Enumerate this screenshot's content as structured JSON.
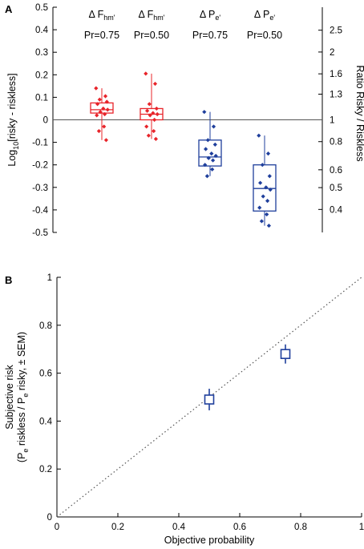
{
  "chart_data": [
    {
      "panel": "A",
      "type": "box",
      "ylabel": "Log10[risky - riskless]",
      "ylabel_parts": {
        "main": "Log",
        "sub": "10",
        "rest": "[risky - riskless]"
      },
      "y2label": "Ratio Risky / Riskless",
      "ylim": [
        -0.5,
        0.5
      ],
      "yticks": [
        -0.5,
        -0.4,
        -0.3,
        -0.2,
        -0.1,
        0,
        0.1,
        0.2,
        0.3,
        0.4,
        0.5
      ],
      "ytick_labels": [
        "-0.5",
        "-0.4",
        "-0.3",
        "-0.2",
        "-0.1",
        "0",
        "0.1",
        "0.2",
        "0.3",
        "0.4",
        "0.5"
      ],
      "y2ticks": [
        0.4,
        0.5,
        0.6,
        0.8,
        1,
        1.3,
        1.6,
        2,
        2.5
      ],
      "y2tick_labels": [
        "0.4",
        "0.5",
        "0.6",
        "0.8",
        "1",
        "1.3",
        "1.6",
        "2",
        "2.5"
      ],
      "reference_line": 0,
      "groups": [
        {
          "label_delta": "Δ",
          "label_var": "F",
          "label_sub": "hm'",
          "label_pr": "Pr=0.75",
          "color": "#e8242a",
          "min": -0.09,
          "q1": 0.03,
          "median": 0.045,
          "q3": 0.075,
          "max": 0.14,
          "points": [
            0.14,
            0.105,
            0.09,
            0.08,
            0.07,
            0.05,
            0.045,
            0.035,
            0.025,
            0.02,
            -0.03,
            -0.05,
            -0.09
          ]
        },
        {
          "label_delta": "Δ",
          "label_var": "F",
          "label_sub": "hm'",
          "label_pr": "Pr=0.50",
          "color": "#e8242a",
          "min": -0.085,
          "q1": 0.0,
          "median": 0.025,
          "q3": 0.05,
          "max": 0.205,
          "points": [
            0.205,
            0.16,
            0.07,
            0.05,
            0.04,
            0.03,
            0.025,
            0.02,
            0.0,
            -0.03,
            -0.05,
            -0.07,
            -0.085
          ]
        },
        {
          "label_delta": "Δ",
          "label_var": "P",
          "label_sub": "e'",
          "label_pr": "Pr=0.75",
          "color": "#1f3f9c",
          "min": -0.25,
          "q1": -0.205,
          "median": -0.165,
          "q3": -0.09,
          "max": 0.035,
          "points": [
            0.035,
            -0.03,
            -0.09,
            -0.11,
            -0.13,
            -0.15,
            -0.16,
            -0.17,
            -0.18,
            -0.2,
            -0.22,
            -0.25
          ]
        },
        {
          "label_delta": "Δ",
          "label_var": "P",
          "label_sub": "e'",
          "label_pr": "Pr=0.50",
          "color": "#1f3f9c",
          "min": -0.47,
          "q1": -0.405,
          "median": -0.305,
          "q3": -0.2,
          "max": -0.07,
          "points": [
            -0.07,
            -0.15,
            -0.2,
            -0.25,
            -0.28,
            -0.3,
            -0.31,
            -0.34,
            -0.36,
            -0.39,
            -0.42,
            -0.45,
            -0.47
          ]
        }
      ]
    },
    {
      "panel": "B",
      "type": "scatter",
      "xlabel": "Objective probability",
      "ylabel_line1": "Subjective risk",
      "ylabel_line2_parts": {
        "open": "(P",
        "sub1": "e",
        "mid": " riskless / P",
        "sub2": "e",
        "rest": " risky, ± SEM)"
      },
      "xlim": [
        0,
        1
      ],
      "ylim": [
        0,
        1
      ],
      "xticks": [
        0,
        0.2,
        0.4,
        0.6,
        0.8,
        1
      ],
      "xtick_labels": [
        "0",
        "0.2",
        "0.4",
        "0.6",
        "0.8",
        "1"
      ],
      "yticks": [
        0,
        0.2,
        0.4,
        0.6,
        0.8,
        1
      ],
      "ytick_labels": [
        "0",
        "0.2",
        "0.4",
        "0.6",
        "0.8",
        "1"
      ],
      "identity_line": true,
      "marker_color": "#1f3f9c",
      "points": [
        {
          "x": 0.5,
          "y": 0.49,
          "sem": 0.045
        },
        {
          "x": 0.75,
          "y": 0.68,
          "sem": 0.04
        }
      ]
    }
  ],
  "panel_letters": {
    "a": "A",
    "b": "B"
  }
}
